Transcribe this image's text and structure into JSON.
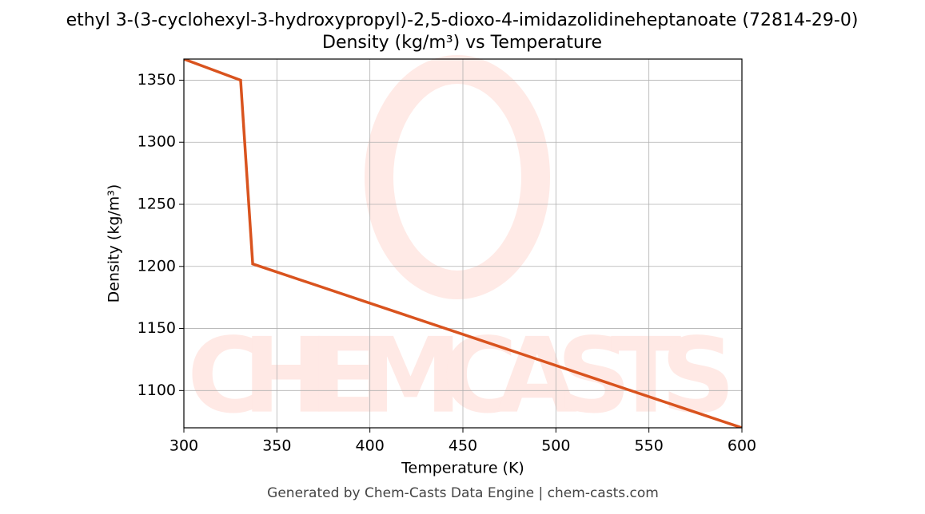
{
  "chart_data": {
    "type": "line",
    "title": "ethyl 3-(3-cyclohexyl-3-hydroxypropyl)-2,5-dioxo-4-imidazolidineheptanoate (72814-29-0)",
    "subtitle": "Density (kg/m³) vs Temperature",
    "x_label": "Temperature (K)",
    "y_label": "Density (kg/m³)",
    "x": [
      300,
      330.5,
      337,
      600
    ],
    "series": [
      {
        "name": "Density",
        "color": "#d9531e",
        "values": [
          1367,
          1350,
          1202,
          1070
        ]
      }
    ],
    "xlim": [
      300,
      600
    ],
    "xticks": [
      300,
      350,
      400,
      450,
      500,
      550,
      600
    ],
    "ylim": [
      1070,
      1367
    ],
    "yticks": [
      1100,
      1150,
      1200,
      1250,
      1300,
      1350
    ],
    "grid": true,
    "watermark": "CHEMCASTS",
    "footer": "Generated by Chem-Casts Data Engine | chem-casts.com"
  }
}
